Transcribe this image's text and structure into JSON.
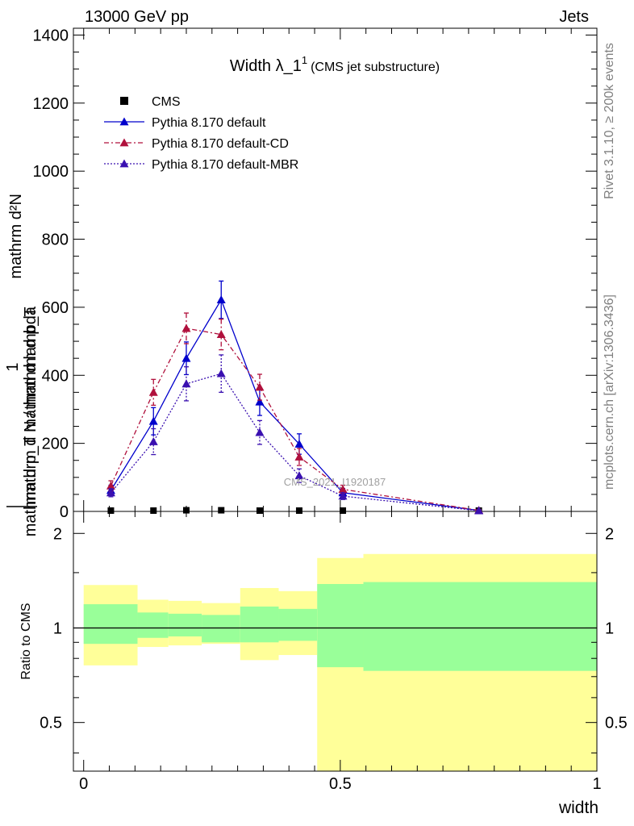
{
  "header": {
    "left": "13000 GeV pp",
    "right": "Jets"
  },
  "side_labels": {
    "rivet": "Rivet 3.1.10, ≥ 200k events",
    "mcplots": "mcplots.cern.ch [arXiv:1306.3436]"
  },
  "watermark": "CMS_2021_I1920187",
  "colors": {
    "cms": "#000000",
    "default": "#0000cc",
    "cd": "#b0103c",
    "mbr": "#3a10b0",
    "band_inner": "#99ff99",
    "band_outer": "#ffff99"
  },
  "chart_data": [
    {
      "type": "line",
      "title_main": "Width λ_1",
      "title_sup": "1",
      "title_sub": "(CMS jet substructure)",
      "ylabel_top": "mathrm d²N",
      "ylabel_top2": "mathrm d p_T mathrm d lambda",
      "ylabel_one": "1",
      "ylabel_bottom": "mathrm d N / mathrm d p_T",
      "ylim": [
        0,
        1420
      ],
      "xlim": [
        -0.02,
        1.0
      ],
      "yticks": [
        0,
        200,
        400,
        600,
        800,
        1000,
        1200,
        1400
      ],
      "ytick_labels": [
        "0",
        "200",
        "400",
        "600",
        "800",
        "1000",
        "1200",
        "1400"
      ],
      "x": [
        0.053,
        0.136,
        0.2,
        0.268,
        0.343,
        0.42,
        0.505,
        0.77
      ],
      "series": [
        {
          "name": "CMS",
          "marker": "square",
          "values": [
            0,
            0,
            1,
            1,
            0,
            0,
            0,
            0
          ]
        },
        {
          "name": "Pythia 8.170 default",
          "marker": "triangle",
          "line": "solid",
          "values": [
            62,
            265,
            450,
            622,
            322,
            198,
            55,
            3
          ],
          "errors": [
            15,
            40,
            48,
            55,
            40,
            30,
            12,
            2
          ]
        },
        {
          "name": "Pythia 8.170 default-CD",
          "marker": "triangle",
          "line": "dashdot",
          "values": [
            75,
            350,
            538,
            520,
            365,
            160,
            65,
            3
          ],
          "errors": [
            15,
            38,
            45,
            45,
            38,
            25,
            12,
            2
          ]
        },
        {
          "name": "Pythia 8.170 default-MBR",
          "marker": "triangle",
          "line": "dotted",
          "values": [
            55,
            205,
            375,
            405,
            232,
            105,
            45,
            2
          ],
          "errors": [
            12,
            38,
            50,
            55,
            35,
            20,
            10,
            2
          ]
        }
      ]
    },
    {
      "type": "area",
      "ylabel": "Ratio to CMS",
      "xlabel": "width",
      "xlim": [
        -0.02,
        1.0
      ],
      "ylim": [
        0.35,
        2.35
      ],
      "xticks": [
        0,
        0.5,
        1
      ],
      "xtick_labels": [
        "0",
        "0.5",
        "1"
      ],
      "yticks": [
        0.5,
        1,
        2
      ],
      "ytick_labels": [
        "0.5",
        "1",
        "2"
      ],
      "bins": [
        {
          "lo": 0.0,
          "hi": 0.105,
          "inner": [
            0.89,
            1.19
          ],
          "outer": [
            0.76,
            1.37
          ]
        },
        {
          "lo": 0.105,
          "hi": 0.165,
          "inner": [
            0.93,
            1.12
          ],
          "outer": [
            0.87,
            1.23
          ]
        },
        {
          "lo": 0.165,
          "hi": 0.23,
          "inner": [
            0.94,
            1.11
          ],
          "outer": [
            0.88,
            1.22
          ]
        },
        {
          "lo": 0.23,
          "hi": 0.305,
          "inner": [
            0.9,
            1.1
          ],
          "outer": [
            0.89,
            1.2
          ]
        },
        {
          "lo": 0.305,
          "hi": 0.38,
          "inner": [
            0.9,
            1.17
          ],
          "outer": [
            0.79,
            1.34
          ]
        },
        {
          "lo": 0.38,
          "hi": 0.455,
          "inner": [
            0.91,
            1.15
          ],
          "outer": [
            0.82,
            1.31
          ]
        },
        {
          "lo": 0.455,
          "hi": 0.545,
          "inner": [
            0.75,
            1.38
          ],
          "outer": [
            0.35,
            1.67
          ]
        },
        {
          "lo": 0.545,
          "hi": 1.0,
          "inner": [
            0.73,
            1.4
          ],
          "outer": [
            0.35,
            1.72
          ]
        }
      ]
    }
  ]
}
